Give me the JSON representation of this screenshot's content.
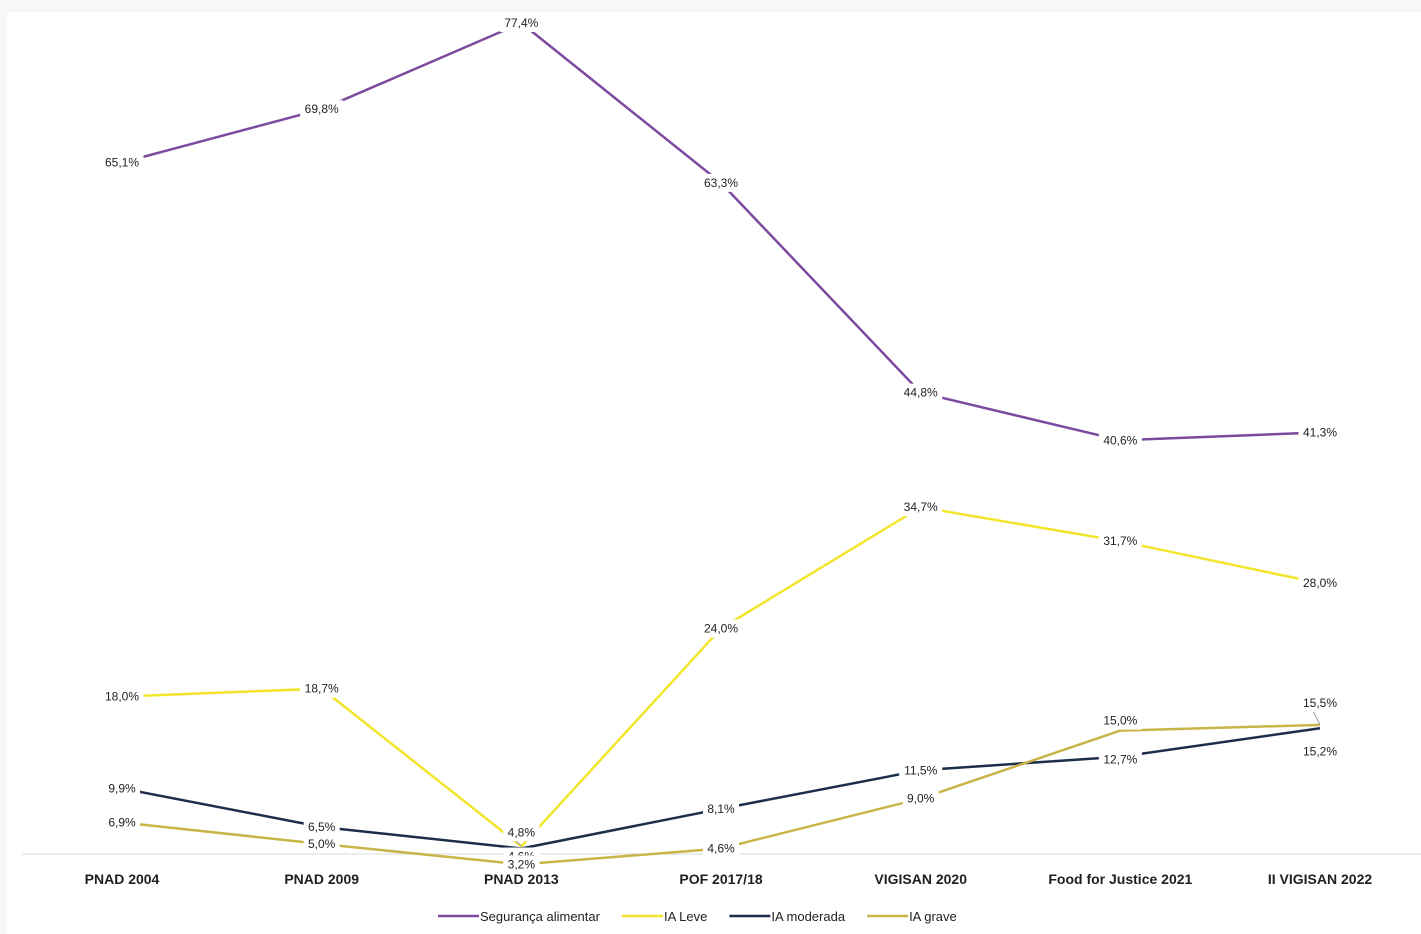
{
  "chart_data": {
    "type": "line",
    "categories": [
      "PNAD 2004",
      "PNAD 2009",
      "PNAD 2013",
      "POF 2017/18",
      "VIGISAN 2020",
      "Food for Justice 2021",
      "II VIGISAN 2022"
    ],
    "series": [
      {
        "name": "Segurança alimentar",
        "color": "#7c4a9e",
        "values": [
          65.1,
          69.8,
          77.4,
          63.3,
          44.8,
          40.6,
          41.3
        ],
        "labels": [
          "65,1%",
          "69,8%",
          "77,4%",
          "63,3%",
          "44,8%",
          "40,6%",
          "41,3%"
        ]
      },
      {
        "name": "IA Leve",
        "color": "#f2e52a",
        "values": [
          18.0,
          18.7,
          4.8,
          24.0,
          34.7,
          31.7,
          28.0
        ],
        "labels": [
          "18,0%",
          "18,7%",
          "4,8%",
          "24,0%",
          "34,7%",
          "31,7%",
          "28,0%"
        ]
      },
      {
        "name": "IA moderada",
        "color": "#1c2e4a",
        "values": [
          9.9,
          6.5,
          4.6,
          8.1,
          11.5,
          12.7,
          15.2
        ],
        "labels": [
          "9,9%",
          "6,5%",
          "4,6%",
          "8,1%",
          "11,5%",
          "12,7%",
          "15,2%"
        ]
      },
      {
        "name": "IA grave",
        "color": "#c9b447",
        "values": [
          6.9,
          5.0,
          3.2,
          4.6,
          9.0,
          15.0,
          15.5
        ],
        "labels": [
          "6,9%",
          "5,0%",
          "3,2%",
          "4,6%",
          "9,0%",
          "15,0%",
          "15,5%"
        ]
      }
    ],
    "ylim": [
      0,
      80
    ],
    "grid": false,
    "legend_position": "bottom",
    "title": "",
    "xlabel": "",
    "ylabel": ""
  }
}
